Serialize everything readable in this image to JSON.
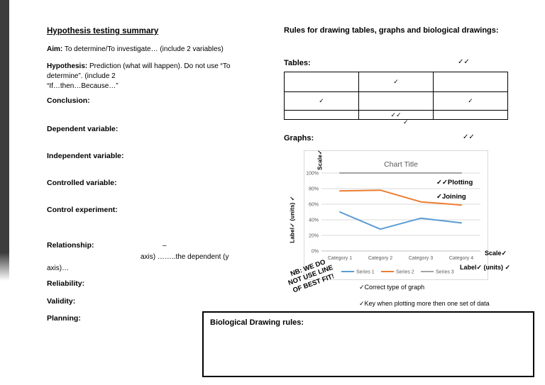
{
  "left": {
    "title": "Hypothesis testing summary",
    "aim_label": "Aim:",
    "aim_text": "To determine/To investigate… (include 2 variables)",
    "hypothesis_label": "Hypothesis:",
    "hypothesis_text_line1": "Prediction (what will happen). Do not use “To",
    "hypothesis_text_line2": "determine”. (include 2",
    "hypothesis_text_line3": "“If…then…Because…”",
    "conclusion_label": "Conclusion:",
    "dependent_label": "Dependent variable:",
    "independent_label": "Independent variable:",
    "controlled_label": "Controlled variable:",
    "control_experiment_label": "Control experiment:",
    "relationship_label": "Relationship:",
    "relationship_dash": "–",
    "relationship_line2": "axis) ……..the dependent (y",
    "relationship_line3": "axis)…",
    "reliability_label": "Reliability:",
    "validity_label": "Validity:",
    "planning_label": "Planning:"
  },
  "right": {
    "heading": "Rules for drawing tables, graphs and biological drawings:",
    "tables_label": "Tables:",
    "tables_ticks": "✓✓",
    "table_cells": [
      [
        "",
        "✓",
        ""
      ],
      [
        "✓",
        "",
        "✓"
      ],
      [
        "",
        "✓✓",
        ""
      ]
    ],
    "table_below_tick": "✓",
    "graphs_label": "Graphs:",
    "graphs_ticks": "✓✓",
    "scale_top_annotation": "Scale✓",
    "y_axis_annotation": "Label✓ (units) ✓",
    "plotting_annotation": "✓✓Plotting",
    "joining_annotation": "✓Joining",
    "scale_right_annotation": "Scale✓",
    "label_right_annotation": "Label✓ (units) ✓",
    "nb_line1": "NB: WE DO",
    "nb_line2": "NOT USE LINE",
    "nb_line3": "OF BEST FIT!",
    "correct_type_note": "✓Correct type of graph",
    "key_note": "✓Key when plotting more then one set of data",
    "bio_box_label": "Biological Drawing rules:"
  },
  "chart_data": {
    "type": "line",
    "title": "Chart Title",
    "categories": [
      "Category 1",
      "Category 2",
      "Category 3",
      "Category 4"
    ],
    "series": [
      {
        "name": "Series 1",
        "color": "#5B9BD5",
        "values": [
          50,
          28,
          42,
          36
        ]
      },
      {
        "name": "Series 2",
        "color": "#ED7D31",
        "values": [
          77,
          78,
          63,
          59
        ]
      },
      {
        "name": "Series 3",
        "color": "#A5A5A5",
        "values": [
          100,
          100,
          100,
          100
        ]
      }
    ],
    "y_ticks": [
      0,
      20,
      40,
      60,
      80,
      100
    ],
    "y_tick_labels": [
      "0%",
      "20%",
      "40%",
      "60%",
      "80%",
      "100%"
    ],
    "ylim": [
      0,
      100
    ],
    "grid": true,
    "legend_position": "bottom",
    "title_color": "#595959",
    "axis_text_color": "#595959",
    "gridline_color": "#D9D9D9",
    "axis_line_color": "#BFBFBF"
  }
}
